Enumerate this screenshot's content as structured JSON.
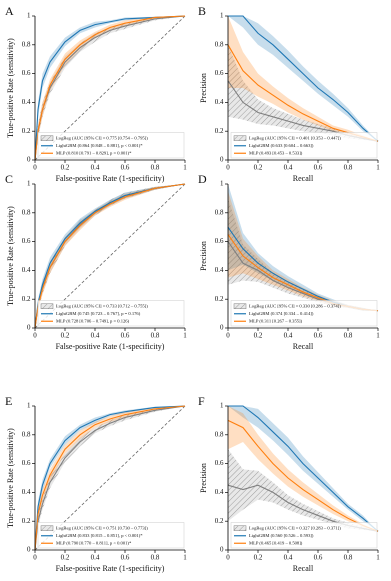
{
  "chart_data": [
    {
      "type": "line",
      "panel": "A",
      "xlabel": "False-positive Rate (1-specificity)",
      "ylabel": "True-positive Rate (sensitivity)",
      "xlim": [
        0,
        1
      ],
      "ylim": [
        0,
        1
      ],
      "xticks": [
        0,
        0.2,
        0.4,
        0.6,
        0.8,
        1
      ],
      "yticks": [
        0,
        0.2,
        0.4,
        0.6,
        0.8,
        1
      ],
      "diagonal": true,
      "legend": "lower right",
      "x": [
        0,
        0.02,
        0.05,
        0.1,
        0.2,
        0.3,
        0.4,
        0.5,
        0.6,
        0.8,
        1
      ],
      "series": [
        {
          "name": "LogReg (AUC [95% CI] = 0.775 [0.754 – 0.795])",
          "color": "#7f7f7f",
          "hatch": true,
          "values": [
            0,
            0.2,
            0.35,
            0.5,
            0.68,
            0.78,
            0.85,
            0.9,
            0.93,
            0.98,
            1
          ],
          "lower": [
            0,
            0.15,
            0.3,
            0.46,
            0.64,
            0.75,
            0.82,
            0.88,
            0.91,
            0.97,
            1
          ],
          "upper": [
            0,
            0.25,
            0.4,
            0.54,
            0.72,
            0.81,
            0.88,
            0.92,
            0.95,
            0.99,
            1
          ]
        },
        {
          "name": "LightGBM (0.864 [0.848 – 0.881], p < 0.001)*",
          "color": "#1f77b4",
          "values": [
            0,
            0.35,
            0.55,
            0.68,
            0.82,
            0.9,
            0.94,
            0.96,
            0.98,
            0.99,
            1
          ],
          "lower": [
            0,
            0.3,
            0.5,
            0.64,
            0.79,
            0.88,
            0.92,
            0.95,
            0.97,
            0.985,
            1
          ],
          "upper": [
            0,
            0.4,
            0.6,
            0.72,
            0.85,
            0.92,
            0.96,
            0.97,
            0.99,
            0.995,
            1
          ]
        },
        {
          "name": "MLP (0.810 [0.791 – 0.829], p = 0.001)*",
          "color": "#ff7f0e",
          "values": [
            0,
            0.2,
            0.35,
            0.52,
            0.7,
            0.8,
            0.87,
            0.92,
            0.95,
            0.99,
            1
          ],
          "lower": [
            0,
            0.16,
            0.3,
            0.48,
            0.66,
            0.77,
            0.85,
            0.9,
            0.93,
            0.98,
            1
          ],
          "upper": [
            0,
            0.24,
            0.4,
            0.56,
            0.74,
            0.83,
            0.89,
            0.94,
            0.97,
            0.995,
            1
          ]
        }
      ]
    },
    {
      "type": "line",
      "panel": "B",
      "xlabel": "Recall",
      "ylabel": "Precision",
      "xlim": [
        0,
        1
      ],
      "ylim": [
        0,
        1
      ],
      "xticks": [
        0,
        0.2,
        0.4,
        0.6,
        0.8,
        1
      ],
      "yticks": [
        0,
        0.2,
        0.4,
        0.6,
        0.8,
        1
      ],
      "diagonal": false,
      "legend": "lower right",
      "x": [
        0,
        0.1,
        0.2,
        0.3,
        0.4,
        0.5,
        0.6,
        0.7,
        0.8,
        0.9,
        1
      ],
      "series": [
        {
          "name": "LogReg (AUC [95% CI] = 0.401 [0.353 – 0.447])",
          "color": "#7f7f7f",
          "hatch": true,
          "values": [
            0.55,
            0.4,
            0.33,
            0.3,
            0.27,
            0.24,
            0.22,
            0.2,
            0.17,
            0.15,
            0.13
          ],
          "lower": [
            0.3,
            0.28,
            0.25,
            0.24,
            0.22,
            0.2,
            0.19,
            0.17,
            0.15,
            0.14,
            0.13
          ],
          "upper": [
            0.8,
            0.55,
            0.42,
            0.36,
            0.32,
            0.28,
            0.25,
            0.22,
            0.19,
            0.16,
            0.13
          ]
        },
        {
          "name": "LightGBM (0.633 [0.604 – 0.663])",
          "color": "#1f77b4",
          "values": [
            1,
            1,
            0.88,
            0.8,
            0.7,
            0.6,
            0.5,
            0.42,
            0.33,
            0.22,
            0.13
          ],
          "lower": [
            1,
            0.92,
            0.8,
            0.73,
            0.64,
            0.55,
            0.46,
            0.38,
            0.3,
            0.2,
            0.13
          ],
          "upper": [
            1,
            1,
            0.95,
            0.86,
            0.76,
            0.65,
            0.55,
            0.46,
            0.36,
            0.24,
            0.13
          ]
        },
        {
          "name": "MLP (0.493 [0.453 – 0.533])",
          "color": "#ff7f0e",
          "values": [
            0.8,
            0.62,
            0.52,
            0.45,
            0.38,
            0.32,
            0.27,
            0.22,
            0.19,
            0.16,
            0.13
          ],
          "lower": [
            0.5,
            0.5,
            0.44,
            0.39,
            0.33,
            0.28,
            0.24,
            0.2,
            0.17,
            0.15,
            0.13
          ],
          "upper": [
            1,
            0.75,
            0.6,
            0.51,
            0.43,
            0.36,
            0.3,
            0.24,
            0.21,
            0.17,
            0.13
          ]
        }
      ]
    },
    {
      "type": "line",
      "panel": "C",
      "xlabel": "False-positive Rate (1-specificity)",
      "ylabel": "True-positive Rate (sensitivity)",
      "xlim": [
        0,
        1
      ],
      "ylim": [
        0,
        1
      ],
      "xticks": [
        0,
        0.2,
        0.4,
        0.6,
        0.8,
        1
      ],
      "yticks": [
        0,
        0.2,
        0.4,
        0.6,
        0.8,
        1
      ],
      "diagonal": true,
      "legend": "lower right",
      "x": [
        0,
        0.02,
        0.05,
        0.1,
        0.2,
        0.3,
        0.4,
        0.5,
        0.6,
        0.8,
        1
      ],
      "series": [
        {
          "name": "LogReg (AUC [95% CI] = 0.733 [0.712 – 0.755])",
          "color": "#7f7f7f",
          "hatch": true,
          "values": [
            0,
            0.15,
            0.28,
            0.42,
            0.6,
            0.72,
            0.8,
            0.87,
            0.92,
            0.97,
            1
          ],
          "lower": [
            0,
            0.12,
            0.24,
            0.38,
            0.57,
            0.69,
            0.78,
            0.85,
            0.9,
            0.96,
            1
          ],
          "upper": [
            0,
            0.18,
            0.32,
            0.46,
            0.63,
            0.75,
            0.82,
            0.89,
            0.94,
            0.98,
            1
          ]
        },
        {
          "name": "LightGBM (0.745 [0.723 – 0.767], p = 0.176)",
          "color": "#1f77b4",
          "values": [
            0,
            0.17,
            0.3,
            0.45,
            0.62,
            0.73,
            0.81,
            0.87,
            0.92,
            0.97,
            1
          ],
          "lower": [
            0,
            0.14,
            0.26,
            0.41,
            0.59,
            0.7,
            0.79,
            0.85,
            0.9,
            0.96,
            1
          ],
          "upper": [
            0,
            0.2,
            0.34,
            0.49,
            0.65,
            0.76,
            0.83,
            0.89,
            0.94,
            0.98,
            1
          ]
        },
        {
          "name": "MLP (0.728 [0.706 – 0.749], p = 0.126)",
          "color": "#ff7f0e",
          "values": [
            0,
            0.15,
            0.27,
            0.42,
            0.6,
            0.71,
            0.8,
            0.86,
            0.91,
            0.97,
            1
          ],
          "lower": [
            0,
            0.12,
            0.23,
            0.38,
            0.57,
            0.68,
            0.78,
            0.84,
            0.89,
            0.96,
            1
          ],
          "upper": [
            0,
            0.18,
            0.31,
            0.46,
            0.63,
            0.74,
            0.82,
            0.88,
            0.93,
            0.98,
            1
          ]
        }
      ]
    },
    {
      "type": "line",
      "panel": "D",
      "xlabel": "Recall",
      "ylabel": "Precision",
      "xlim": [
        0,
        1
      ],
      "ylim": [
        0,
        1
      ],
      "xticks": [
        0,
        0.2,
        0.4,
        0.6,
        0.8,
        1
      ],
      "yticks": [
        0,
        0.2,
        0.4,
        0.6,
        0.8,
        1
      ],
      "diagonal": false,
      "legend": "lower right",
      "x": [
        0,
        0.1,
        0.2,
        0.3,
        0.4,
        0.5,
        0.6,
        0.7,
        0.8,
        0.9,
        1
      ],
      "series": [
        {
          "name": "LogReg (AUC [95% CI] = 0.330 [0.286 – 0.374])",
          "color": "#7f7f7f",
          "hatch": true,
          "values": [
            0.6,
            0.45,
            0.4,
            0.33,
            0.28,
            0.24,
            0.2,
            0.17,
            0.15,
            0.13,
            0.12
          ],
          "lower": [
            0.3,
            0.33,
            0.32,
            0.28,
            0.24,
            0.21,
            0.18,
            0.15,
            0.14,
            0.12,
            0.12
          ],
          "upper": [
            0.9,
            0.58,
            0.48,
            0.38,
            0.32,
            0.27,
            0.22,
            0.19,
            0.16,
            0.14,
            0.12
          ]
        },
        {
          "name": "LightGBM (0.374 [0.334 – 0.414])",
          "color": "#1f77b4",
          "values": [
            0.7,
            0.55,
            0.45,
            0.38,
            0.32,
            0.27,
            0.22,
            0.18,
            0.15,
            0.13,
            0.12
          ],
          "lower": [
            0.4,
            0.44,
            0.38,
            0.33,
            0.28,
            0.24,
            0.2,
            0.16,
            0.14,
            0.12,
            0.12
          ],
          "upper": [
            1,
            0.66,
            0.52,
            0.43,
            0.36,
            0.3,
            0.24,
            0.2,
            0.16,
            0.14,
            0.12
          ]
        },
        {
          "name": "MLP (0.311 [0.267 – 0.355])",
          "color": "#ff7f0e",
          "values": [
            0.65,
            0.5,
            0.42,
            0.35,
            0.3,
            0.25,
            0.21,
            0.17,
            0.15,
            0.13,
            0.12
          ],
          "lower": [
            0.35,
            0.38,
            0.34,
            0.3,
            0.26,
            0.22,
            0.19,
            0.15,
            0.14,
            0.12,
            0.12
          ],
          "upper": [
            0.95,
            0.62,
            0.5,
            0.4,
            0.34,
            0.28,
            0.23,
            0.19,
            0.16,
            0.14,
            0.12
          ]
        }
      ]
    },
    {
      "type": "line",
      "panel": "E",
      "xlabel": "False-positive Rate (1-specificity)",
      "ylabel": "True-positive Rate (sensitivity)",
      "xlim": [
        0,
        1
      ],
      "ylim": [
        0,
        1
      ],
      "xticks": [
        0,
        0.2,
        0.4,
        0.6,
        0.8,
        1
      ],
      "yticks": [
        0,
        0.2,
        0.4,
        0.6,
        0.8,
        1
      ],
      "diagonal": true,
      "legend": "lower right",
      "x": [
        0,
        0.02,
        0.05,
        0.1,
        0.2,
        0.3,
        0.4,
        0.5,
        0.6,
        0.8,
        1
      ],
      "series": [
        {
          "name": "LogReg (AUC [95% CI] = 0.751 [0.730 – 0.773])",
          "color": "#7f7f7f",
          "hatch": true,
          "values": [
            0,
            0.2,
            0.32,
            0.47,
            0.64,
            0.75,
            0.83,
            0.88,
            0.92,
            0.97,
            1
          ],
          "lower": [
            0,
            0.16,
            0.28,
            0.43,
            0.61,
            0.72,
            0.81,
            0.86,
            0.9,
            0.96,
            1
          ],
          "upper": [
            0,
            0.24,
            0.36,
            0.51,
            0.67,
            0.78,
            0.85,
            0.9,
            0.94,
            0.98,
            1
          ]
        },
        {
          "name": "LightGBM (0.833 [0.815 – 0.851], p < 0.001)*",
          "color": "#1f77b4",
          "values": [
            0,
            0.3,
            0.45,
            0.6,
            0.76,
            0.85,
            0.9,
            0.94,
            0.96,
            0.99,
            1
          ],
          "lower": [
            0,
            0.26,
            0.41,
            0.57,
            0.73,
            0.83,
            0.88,
            0.93,
            0.95,
            0.985,
            1
          ],
          "upper": [
            0,
            0.34,
            0.49,
            0.63,
            0.79,
            0.87,
            0.92,
            0.95,
            0.97,
            0.995,
            1
          ]
        },
        {
          "name": "MLP (0.790 [0.770 – 0.811], p < 0.001)*",
          "color": "#ff7f0e",
          "values": [
            0,
            0.25,
            0.38,
            0.52,
            0.7,
            0.8,
            0.87,
            0.91,
            0.94,
            0.98,
            1
          ],
          "lower": [
            0,
            0.21,
            0.34,
            0.48,
            0.67,
            0.77,
            0.85,
            0.89,
            0.92,
            0.97,
            1
          ],
          "upper": [
            0,
            0.29,
            0.42,
            0.56,
            0.73,
            0.83,
            0.89,
            0.93,
            0.96,
            0.99,
            1
          ]
        }
      ]
    },
    {
      "type": "line",
      "panel": "F",
      "xlabel": "Recall",
      "ylabel": "Precision",
      "xlim": [
        0,
        1
      ],
      "ylim": [
        0,
        1
      ],
      "xticks": [
        0,
        0.2,
        0.4,
        0.6,
        0.8,
        1
      ],
      "yticks": [
        0,
        0.2,
        0.4,
        0.6,
        0.8,
        1
      ],
      "diagonal": false,
      "legend": "lower right",
      "x": [
        0,
        0.1,
        0.2,
        0.3,
        0.4,
        0.5,
        0.6,
        0.7,
        0.8,
        0.9,
        1
      ],
      "series": [
        {
          "name": "LogReg (AUC [95% CI] = 0.327 [0.283 – 0.371])",
          "color": "#7f7f7f",
          "hatch": true,
          "values": [
            0.45,
            0.42,
            0.45,
            0.4,
            0.33,
            0.28,
            0.24,
            0.2,
            0.17,
            0.15,
            0.13
          ],
          "lower": [
            0.2,
            0.28,
            0.35,
            0.33,
            0.28,
            0.24,
            0.21,
            0.18,
            0.15,
            0.14,
            0.13
          ],
          "upper": [
            0.7,
            0.56,
            0.55,
            0.47,
            0.38,
            0.32,
            0.27,
            0.22,
            0.19,
            0.16,
            0.13
          ]
        },
        {
          "name": "LightGBM (0.560 [0.526 – 0.593])",
          "color": "#1f77b4",
          "values": [
            1,
            1,
            0.92,
            0.82,
            0.72,
            0.6,
            0.5,
            0.4,
            0.3,
            0.22,
            0.13
          ],
          "lower": [
            1,
            0.92,
            0.85,
            0.76,
            0.66,
            0.55,
            0.46,
            0.37,
            0.28,
            0.2,
            0.13
          ],
          "upper": [
            1,
            1,
            0.98,
            0.88,
            0.78,
            0.65,
            0.54,
            0.43,
            0.32,
            0.24,
            0.13
          ]
        },
        {
          "name": "MLP (0.465 [0.419 – 0.508])",
          "color": "#ff7f0e",
          "values": [
            0.9,
            0.85,
            0.72,
            0.6,
            0.5,
            0.42,
            0.35,
            0.28,
            0.22,
            0.17,
            0.13
          ],
          "lower": [
            0.7,
            0.75,
            0.63,
            0.53,
            0.44,
            0.37,
            0.31,
            0.25,
            0.2,
            0.16,
            0.13
          ],
          "upper": [
            1,
            0.95,
            0.8,
            0.67,
            0.56,
            0.47,
            0.39,
            0.31,
            0.24,
            0.18,
            0.13
          ]
        }
      ]
    }
  ]
}
